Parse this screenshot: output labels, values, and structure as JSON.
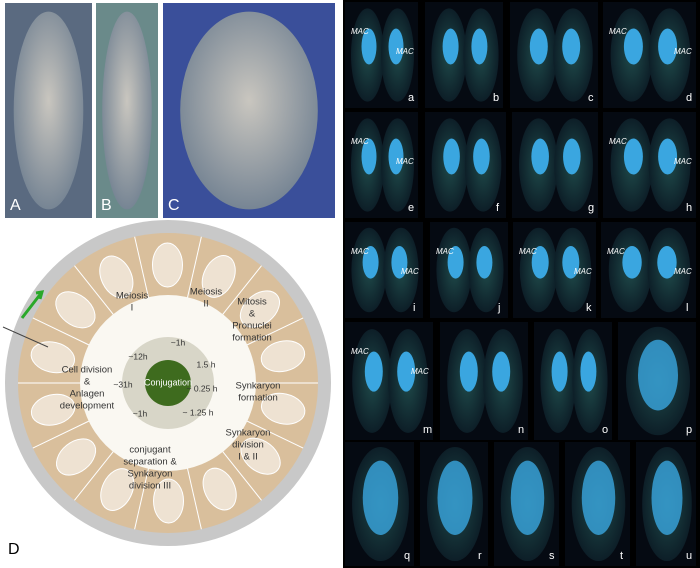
{
  "photos": [
    {
      "label": "A"
    },
    {
      "label": "B"
    },
    {
      "label": "C"
    }
  ],
  "diagram": {
    "label": "D",
    "center": "Conjugation",
    "stages": [
      {
        "lines": [
          "Meiosis",
          "I"
        ]
      },
      {
        "lines": [
          "Meiosis",
          "II"
        ]
      },
      {
        "lines": [
          "Mitosis",
          "&",
          "Pronuclei",
          "formation"
        ]
      },
      {
        "lines": [
          "Synkaryon",
          "formation"
        ]
      },
      {
        "lines": [
          "Synkaryon",
          "division",
          "I & II"
        ]
      },
      {
        "lines": [
          "conjugant",
          "separation &",
          "Synkaryon",
          "division III"
        ]
      },
      {
        "lines": [
          "Cell division",
          "&",
          "Anlagen",
          "development"
        ]
      }
    ],
    "times": [
      "~12h",
      "~1h",
      "1.5 h",
      "~ 0.25 h",
      "~ 1.25 h",
      "~1h",
      "~31h"
    ]
  },
  "micrographs": [
    {
      "label": "a",
      "annotations": [
        "MAC",
        "MAC"
      ]
    },
    {
      "label": "b",
      "annotations": []
    },
    {
      "label": "c",
      "annotations": []
    },
    {
      "label": "d",
      "annotations": [
        "MAC",
        "MAC"
      ]
    },
    {
      "label": "e",
      "annotations": [
        "MAC",
        "MAC"
      ]
    },
    {
      "label": "f",
      "annotations": []
    },
    {
      "label": "g",
      "annotations": []
    },
    {
      "label": "h",
      "annotations": [
        "MAC",
        "MAC"
      ]
    },
    {
      "label": "i",
      "annotations": [
        "MAC",
        "MAC"
      ]
    },
    {
      "label": "j",
      "annotations": [
        "MAC"
      ]
    },
    {
      "label": "k",
      "annotations": [
        "MAC",
        "MAC"
      ]
    },
    {
      "label": "l",
      "annotations": [
        "MAC",
        "MAC"
      ]
    },
    {
      "label": "m",
      "annotations": [
        "MAC",
        "MAC"
      ]
    },
    {
      "label": "n",
      "annotations": []
    },
    {
      "label": "o",
      "annotations": []
    },
    {
      "label": "p",
      "annotations": []
    },
    {
      "label": "q",
      "annotations": []
    },
    {
      "label": "r",
      "annotations": []
    },
    {
      "label": "s",
      "annotations": []
    },
    {
      "label": "t",
      "annotations": []
    },
    {
      "label": "u",
      "annotations": []
    }
  ]
}
